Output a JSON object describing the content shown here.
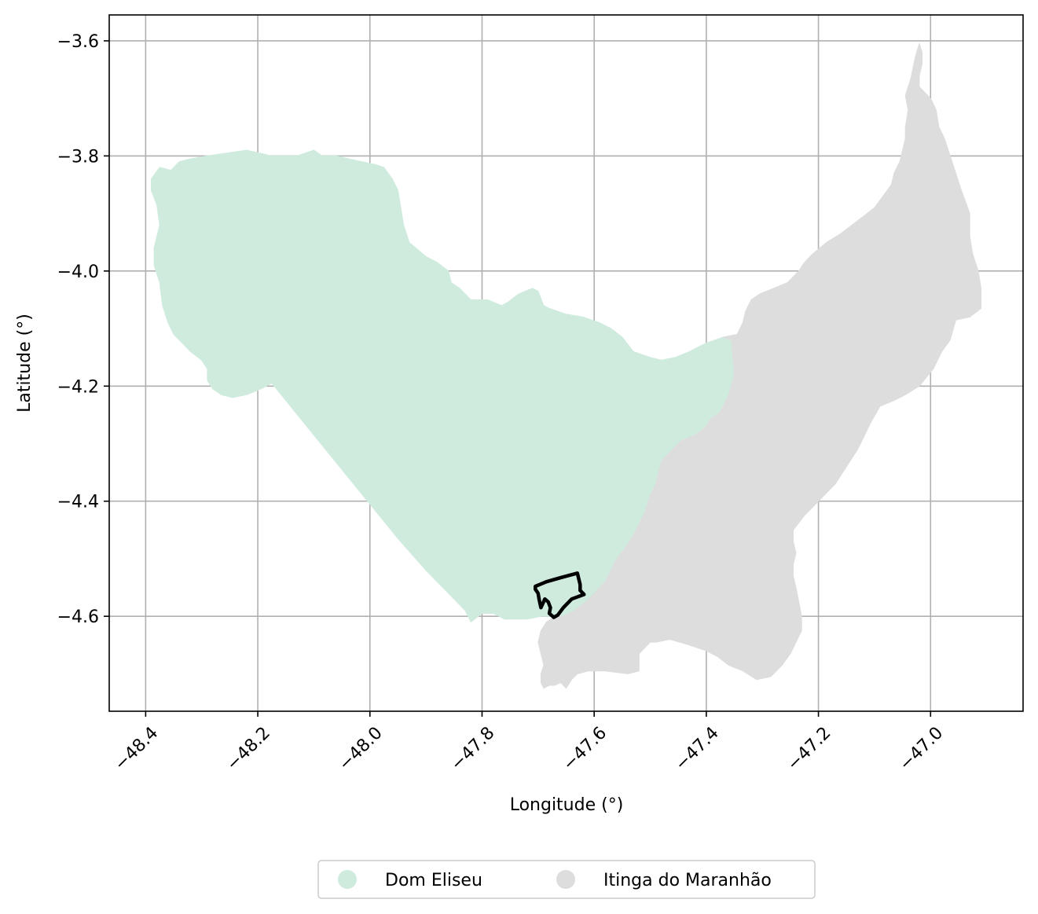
{
  "chart_data": {
    "type": "map",
    "xlabel": "Longitude (°)",
    "ylabel": "Latitude (°)",
    "xlim": [
      -48.465,
      -46.835
    ],
    "ylim": [
      -4.765,
      -3.555
    ],
    "xticks": [
      -48.4,
      -48.2,
      -48.0,
      -47.8,
      -47.6,
      -47.4,
      -47.2,
      -47.0
    ],
    "xtick_labels": [
      "−48.4",
      "−48.2",
      "−48.0",
      "−47.8",
      "−47.6",
      "−47.4",
      "−47.2",
      "−47.0"
    ],
    "yticks": [
      -3.6,
      -3.8,
      -4.0,
      -4.2,
      -4.4,
      -4.6
    ],
    "ytick_labels": [
      "−3.6",
      "−3.8",
      "−4.0",
      "−4.2",
      "−4.4",
      "−4.6"
    ],
    "grid": true,
    "legend_placement": "bottom-center",
    "regions": [
      {
        "name": "Dom Eliseu",
        "color": "#cfebde",
        "coords": [
          [
            -48.39,
            -3.84
          ],
          [
            -48.375,
            -3.82
          ],
          [
            -48.355,
            -3.825
          ],
          [
            -48.34,
            -3.81
          ],
          [
            -48.32,
            -3.805
          ],
          [
            -48.29,
            -3.8
          ],
          [
            -48.255,
            -3.795
          ],
          [
            -48.22,
            -3.79
          ],
          [
            -48.175,
            -3.8
          ],
          [
            -48.13,
            -3.8
          ],
          [
            -48.1,
            -3.79
          ],
          [
            -48.085,
            -3.8
          ],
          [
            -48.06,
            -3.8
          ],
          [
            -48.015,
            -3.81
          ],
          [
            -47.99,
            -3.815
          ],
          [
            -47.975,
            -3.82
          ],
          [
            -47.96,
            -3.84
          ],
          [
            -47.95,
            -3.86
          ],
          [
            -47.945,
            -3.89
          ],
          [
            -47.94,
            -3.92
          ],
          [
            -47.93,
            -3.95
          ],
          [
            -47.9,
            -3.975
          ],
          [
            -47.88,
            -3.985
          ],
          [
            -47.86,
            -4.0
          ],
          [
            -47.855,
            -4.02
          ],
          [
            -47.84,
            -4.03
          ],
          [
            -47.82,
            -4.05
          ],
          [
            -47.79,
            -4.05
          ],
          [
            -47.765,
            -4.06
          ],
          [
            -47.755,
            -4.055
          ],
          [
            -47.735,
            -4.04
          ],
          [
            -47.71,
            -4.03
          ],
          [
            -47.7,
            -4.035
          ],
          [
            -47.69,
            -4.06
          ],
          [
            -47.68,
            -4.065
          ],
          [
            -47.65,
            -4.075
          ],
          [
            -47.62,
            -4.08
          ],
          [
            -47.59,
            -4.09
          ],
          [
            -47.57,
            -4.1
          ],
          [
            -47.55,
            -4.115
          ],
          [
            -47.53,
            -4.14
          ],
          [
            -47.5,
            -4.15
          ],
          [
            -47.48,
            -4.155
          ],
          [
            -47.455,
            -4.15
          ],
          [
            -47.43,
            -4.14
          ],
          [
            -47.4,
            -4.125
          ],
          [
            -47.37,
            -4.115
          ],
          [
            -47.355,
            -4.12
          ],
          [
            -47.35,
            -4.18
          ],
          [
            -47.36,
            -4.215
          ],
          [
            -47.375,
            -4.245
          ],
          [
            -47.395,
            -4.26
          ],
          [
            -47.4,
            -4.27
          ],
          [
            -47.42,
            -4.285
          ],
          [
            -47.445,
            -4.295
          ],
          [
            -47.46,
            -4.31
          ],
          [
            -47.48,
            -4.33
          ],
          [
            -47.485,
            -4.35
          ],
          [
            -47.49,
            -4.37
          ],
          [
            -47.5,
            -4.39
          ],
          [
            -47.51,
            -4.42
          ],
          [
            -47.525,
            -4.45
          ],
          [
            -47.54,
            -4.475
          ],
          [
            -47.56,
            -4.5
          ],
          [
            -47.57,
            -4.52
          ],
          [
            -47.58,
            -4.54
          ],
          [
            -47.6,
            -4.56
          ],
          [
            -47.615,
            -4.575
          ],
          [
            -47.635,
            -4.59
          ],
          [
            -47.655,
            -4.6
          ],
          [
            -47.68,
            -4.6
          ],
          [
            -47.695,
            -4.6
          ],
          [
            -47.72,
            -4.605
          ],
          [
            -47.76,
            -4.605
          ],
          [
            -47.78,
            -4.595
          ],
          [
            -47.8,
            -4.595
          ],
          [
            -47.82,
            -4.61
          ],
          [
            -47.83,
            -4.59
          ],
          [
            -47.86,
            -4.56
          ],
          [
            -47.9,
            -4.52
          ],
          [
            -47.95,
            -4.465
          ],
          [
            -48.0,
            -4.405
          ],
          [
            -48.05,
            -4.345
          ],
          [
            -48.1,
            -4.285
          ],
          [
            -48.15,
            -4.225
          ],
          [
            -48.175,
            -4.195
          ],
          [
            -48.195,
            -4.205
          ],
          [
            -48.22,
            -4.215
          ],
          [
            -48.245,
            -4.22
          ],
          [
            -48.265,
            -4.215
          ],
          [
            -48.28,
            -4.205
          ],
          [
            -48.29,
            -4.19
          ],
          [
            -48.29,
            -4.17
          ],
          [
            -48.3,
            -4.155
          ],
          [
            -48.32,
            -4.14
          ],
          [
            -48.335,
            -4.125
          ],
          [
            -48.35,
            -4.11
          ],
          [
            -48.36,
            -4.09
          ],
          [
            -48.37,
            -4.06
          ],
          [
            -48.375,
            -4.02
          ],
          [
            -48.385,
            -3.99
          ],
          [
            -48.385,
            -3.96
          ],
          [
            -48.375,
            -3.92
          ],
          [
            -48.38,
            -3.885
          ],
          [
            -48.39,
            -3.86
          ]
        ]
      },
      {
        "name": "Itinga do Maranhão",
        "color": "#dddddd",
        "coords": [
          [
            -47.37,
            -4.115
          ],
          [
            -47.345,
            -4.11
          ],
          [
            -47.335,
            -4.09
          ],
          [
            -47.33,
            -4.07
          ],
          [
            -47.32,
            -4.05
          ],
          [
            -47.305,
            -4.04
          ],
          [
            -47.28,
            -4.03
          ],
          [
            -47.255,
            -4.02
          ],
          [
            -47.235,
            -4.0
          ],
          [
            -47.225,
            -3.985
          ],
          [
            -47.21,
            -3.97
          ],
          [
            -47.185,
            -3.95
          ],
          [
            -47.16,
            -3.935
          ],
          [
            -47.14,
            -3.92
          ],
          [
            -47.12,
            -3.905
          ],
          [
            -47.1,
            -3.89
          ],
          [
            -47.085,
            -3.87
          ],
          [
            -47.07,
            -3.85
          ],
          [
            -47.065,
            -3.83
          ],
          [
            -47.055,
            -3.81
          ],
          [
            -47.05,
            -3.79
          ],
          [
            -47.045,
            -3.77
          ],
          [
            -47.045,
            -3.75
          ],
          [
            -47.04,
            -3.72
          ],
          [
            -47.045,
            -3.695
          ],
          [
            -47.035,
            -3.665
          ],
          [
            -47.03,
            -3.64
          ],
          [
            -47.025,
            -3.62
          ],
          [
            -47.02,
            -3.605
          ],
          [
            -47.015,
            -3.62
          ],
          [
            -47.015,
            -3.64
          ],
          [
            -47.02,
            -3.66
          ],
          [
            -47.02,
            -3.68
          ],
          [
            -47.01,
            -3.69
          ],
          [
            -47.0,
            -3.7
          ],
          [
            -46.99,
            -3.72
          ],
          [
            -46.985,
            -3.75
          ],
          [
            -46.975,
            -3.77
          ],
          [
            -46.965,
            -3.8
          ],
          [
            -46.955,
            -3.83
          ],
          [
            -46.945,
            -3.86
          ],
          [
            -46.93,
            -3.9
          ],
          [
            -46.93,
            -3.94
          ],
          [
            -46.925,
            -3.97
          ],
          [
            -46.915,
            -4.0
          ],
          [
            -46.91,
            -4.03
          ],
          [
            -46.91,
            -4.065
          ],
          [
            -46.93,
            -4.08
          ],
          [
            -46.955,
            -4.085
          ],
          [
            -46.965,
            -4.12
          ],
          [
            -46.98,
            -4.14
          ],
          [
            -46.995,
            -4.17
          ],
          [
            -47.02,
            -4.2
          ],
          [
            -47.045,
            -4.215
          ],
          [
            -47.065,
            -4.225
          ],
          [
            -47.09,
            -4.235
          ],
          [
            -47.105,
            -4.26
          ],
          [
            -47.115,
            -4.28
          ],
          [
            -47.13,
            -4.31
          ],
          [
            -47.15,
            -4.34
          ],
          [
            -47.17,
            -4.37
          ],
          [
            -47.19,
            -4.39
          ],
          [
            -47.21,
            -4.41
          ],
          [
            -47.225,
            -4.425
          ],
          [
            -47.245,
            -4.45
          ],
          [
            -47.245,
            -4.47
          ],
          [
            -47.24,
            -4.49
          ],
          [
            -47.245,
            -4.51
          ],
          [
            -47.245,
            -4.53
          ],
          [
            -47.24,
            -4.55
          ],
          [
            -47.235,
            -4.575
          ],
          [
            -47.23,
            -4.6
          ],
          [
            -47.23,
            -4.625
          ],
          [
            -47.24,
            -4.645
          ],
          [
            -47.25,
            -4.665
          ],
          [
            -47.265,
            -4.685
          ],
          [
            -47.285,
            -4.705
          ],
          [
            -47.31,
            -4.71
          ],
          [
            -47.335,
            -4.695
          ],
          [
            -47.36,
            -4.685
          ],
          [
            -47.38,
            -4.67
          ],
          [
            -47.4,
            -4.66
          ],
          [
            -47.43,
            -4.65
          ],
          [
            -47.465,
            -4.64
          ],
          [
            -47.49,
            -4.645
          ],
          [
            -47.5,
            -4.645
          ],
          [
            -47.52,
            -4.665
          ],
          [
            -47.52,
            -4.695
          ],
          [
            -47.54,
            -4.7
          ],
          [
            -47.58,
            -4.695
          ],
          [
            -47.61,
            -4.695
          ],
          [
            -47.63,
            -4.7
          ],
          [
            -47.64,
            -4.71
          ],
          [
            -47.65,
            -4.725
          ],
          [
            -47.66,
            -4.715
          ],
          [
            -47.67,
            -4.72
          ],
          [
            -47.68,
            -4.72
          ],
          [
            -47.69,
            -4.725
          ],
          [
            -47.695,
            -4.715
          ],
          [
            -47.695,
            -4.7
          ],
          [
            -47.69,
            -4.685
          ],
          [
            -47.695,
            -4.665
          ],
          [
            -47.7,
            -4.645
          ],
          [
            -47.695,
            -4.625
          ],
          [
            -47.685,
            -4.61
          ],
          [
            -47.67,
            -4.6
          ],
          [
            -47.655,
            -4.6
          ],
          [
            -47.635,
            -4.59
          ],
          [
            -47.615,
            -4.575
          ],
          [
            -47.6,
            -4.56
          ],
          [
            -47.58,
            -4.54
          ],
          [
            -47.57,
            -4.52
          ],
          [
            -47.56,
            -4.5
          ],
          [
            -47.54,
            -4.475
          ],
          [
            -47.525,
            -4.45
          ],
          [
            -47.51,
            -4.42
          ],
          [
            -47.5,
            -4.39
          ],
          [
            -47.49,
            -4.37
          ],
          [
            -47.485,
            -4.35
          ],
          [
            -47.48,
            -4.33
          ],
          [
            -47.46,
            -4.31
          ],
          [
            -47.445,
            -4.295
          ],
          [
            -47.42,
            -4.285
          ],
          [
            -47.4,
            -4.27
          ],
          [
            -47.395,
            -4.26
          ],
          [
            -47.375,
            -4.245
          ],
          [
            -47.36,
            -4.215
          ],
          [
            -47.35,
            -4.18
          ],
          [
            -47.355,
            -4.12
          ]
        ]
      }
    ],
    "outline": {
      "color": "#000000",
      "coords": [
        [
          -47.705,
          -4.548
        ],
        [
          -47.685,
          -4.54
        ],
        [
          -47.66,
          -4.533
        ],
        [
          -47.63,
          -4.525
        ],
        [
          -47.625,
          -4.545
        ],
        [
          -47.625,
          -4.555
        ],
        [
          -47.618,
          -4.562
        ],
        [
          -47.64,
          -4.57
        ],
        [
          -47.655,
          -4.585
        ],
        [
          -47.665,
          -4.598
        ],
        [
          -47.672,
          -4.602
        ],
        [
          -47.68,
          -4.595
        ],
        [
          -47.678,
          -4.585
        ],
        [
          -47.682,
          -4.575
        ],
        [
          -47.688,
          -4.57
        ],
        [
          -47.695,
          -4.585
        ],
        [
          -47.698,
          -4.572
        ],
        [
          -47.7,
          -4.56
        ],
        [
          -47.705,
          -4.553
        ]
      ]
    },
    "legend": [
      {
        "label": "Dom Eliseu",
        "color": "#cfebde"
      },
      {
        "label": "Itinga do Maranhão",
        "color": "#dddddd"
      }
    ]
  }
}
